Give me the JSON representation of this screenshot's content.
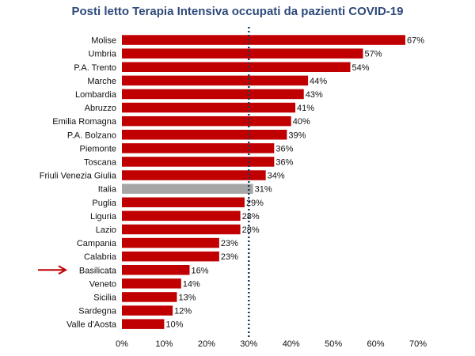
{
  "chart_data": {
    "type": "bar",
    "orientation": "horizontal",
    "title": "Posti letto Terapia  Intensiva occupati da pazienti COVID-19",
    "categories": [
      "Molise",
      "Umbria",
      "P.A. Trento",
      "Marche",
      "Lombardia",
      "Abruzzo",
      "Emilia Romagna",
      "P.A. Bolzano",
      "Piemonte",
      "Toscana",
      "Friuli Venezia Giulia",
      "Italia",
      "Puglia",
      "Liguria",
      "Lazio",
      "Campania",
      "Calabria",
      "Basilicata",
      "Veneto",
      "Sicilia",
      "Sardegna",
      "Valle d'Aosta"
    ],
    "values": [
      67,
      57,
      54,
      44,
      43,
      41,
      40,
      39,
      36,
      36,
      34,
      31,
      29,
      28,
      28,
      23,
      23,
      16,
      14,
      13,
      12,
      10
    ],
    "value_labels": [
      "67%",
      "57%",
      "54%",
      "44%",
      "43%",
      "41%",
      "40%",
      "39%",
      "36%",
      "36%",
      "34%",
      "31%",
      "29%",
      "28%",
      "28%",
      "23%",
      "23%",
      "16%",
      "14%",
      "13%",
      "12%",
      "10%"
    ],
    "xlim": [
      0,
      70
    ],
    "xticks": [
      0,
      10,
      20,
      30,
      40,
      50,
      60,
      70
    ],
    "xtick_labels": [
      "0%",
      "10%",
      "20%",
      "30%",
      "40%",
      "50%",
      "60%",
      "70%"
    ],
    "reference_line": 30,
    "highlight_category": "Italia",
    "marked_category": "Basilicata",
    "bar_color": "#c00000",
    "highlight_color": "#a6a6a6",
    "reference_line_color": "#1f3864",
    "arrow_color": "#c00000",
    "grid": false
  }
}
